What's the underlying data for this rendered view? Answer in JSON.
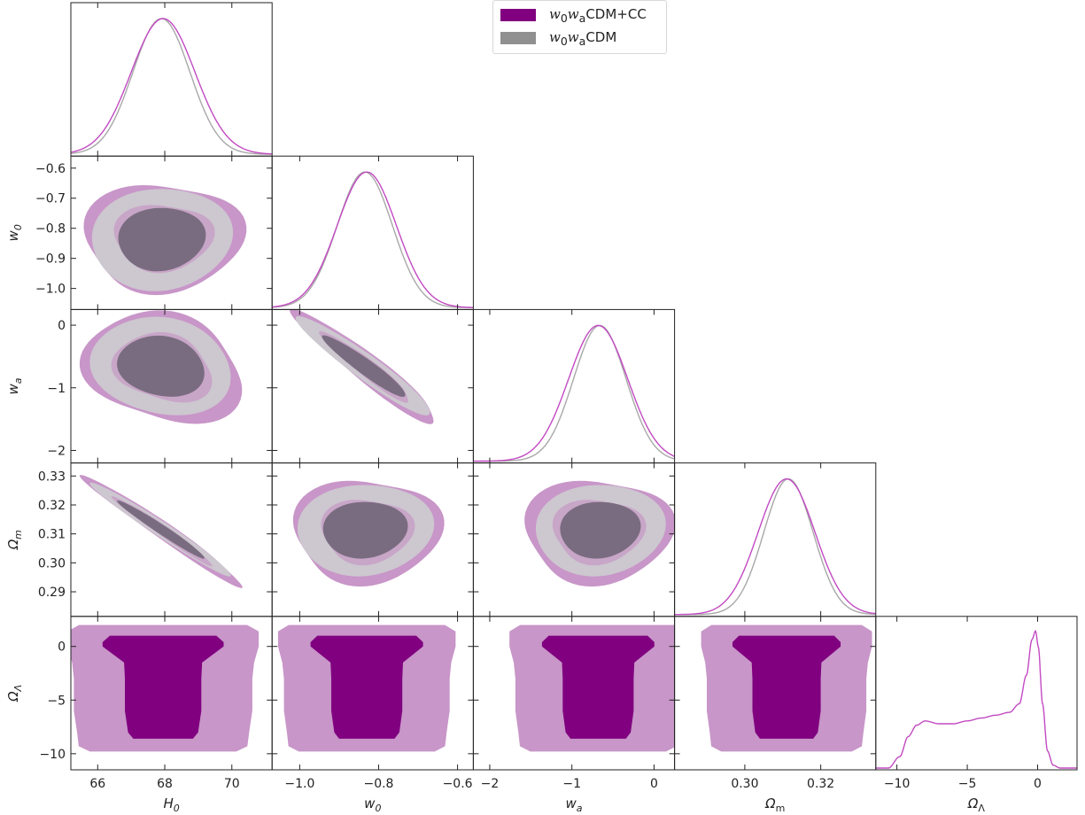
{
  "legend": {
    "items": [
      {
        "label_a": "w",
        "sub_a": "0",
        "label_b": "w",
        "sub_b": "a",
        "label_c": "CDM+CC",
        "color": "#800080"
      },
      {
        "label_a": "w",
        "sub_a": "0",
        "label_b": "w",
        "sub_b": "a",
        "label_c": "CDM",
        "color": "#909090"
      }
    ],
    "placement": "top-center"
  },
  "chart_data": {
    "type": "triangle-corner-plot",
    "parameters": [
      {
        "key": "H0",
        "label": "H",
        "sub": "0",
        "range": [
          65.2,
          71.2
        ],
        "ticks": [
          66,
          68,
          70
        ],
        "tick_labels": [
          "66",
          "68",
          "70"
        ]
      },
      {
        "key": "w0",
        "label": "w",
        "sub": "0",
        "range": [
          -1.07,
          -0.56
        ],
        "ticks": [
          -1.0,
          -0.8,
          -0.6
        ],
        "tick_labels": [
          "−1.0",
          "−0.8",
          "−0.6"
        ],
        "yticks": [
          -0.6,
          -0.7,
          -0.8,
          -0.9,
          -1.0
        ],
        "ytick_labels": [
          "−0.6",
          "−0.7",
          "−0.8",
          "−0.9",
          "−1.0"
        ]
      },
      {
        "key": "wa",
        "label": "w",
        "sub": "a",
        "range": [
          -2.2,
          0.25
        ],
        "ticks": [
          -2,
          -1,
          0
        ],
        "tick_labels": [
          "−2",
          "−1",
          "0"
        ],
        "yticks": [
          0,
          -1,
          -2
        ],
        "ytick_labels": [
          "0",
          "−1",
          "−2"
        ]
      },
      {
        "key": "Om",
        "label": "Ω",
        "sub": "m",
        "range": [
          0.2815,
          0.3345
        ],
        "ticks": [
          0.3,
          0.32
        ],
        "tick_labels": [
          "0.30",
          "0.32"
        ],
        "yticks": [
          0.33,
          0.32,
          0.31,
          0.3,
          0.29
        ],
        "ytick_labels": [
          "0.33",
          "0.32",
          "0.31",
          "0.30",
          "0.29"
        ]
      },
      {
        "key": "OL",
        "label": "Ω",
        "sub": "Λ",
        "range": [
          -11.5,
          2.8
        ],
        "ticks": [
          -10,
          -5,
          0
        ],
        "tick_labels": [
          "−10",
          "−5",
          "0"
        ],
        "yticks": [
          0,
          -5,
          -10
        ],
        "ytick_labels": [
          "0",
          "−5",
          "−10"
        ]
      }
    ],
    "series": [
      {
        "name": "w0waCDM+CC",
        "color": "#800080",
        "contour_outer": "#c896c8",
        "contour_inner": "#800080",
        "marginals": {
          "H0": {
            "mean": 67.95,
            "sigma": 0.95
          },
          "w0": {
            "mean": -0.83,
            "sigma": 0.075
          },
          "wa": {
            "mean": -0.68,
            "sigma": 0.36
          },
          "Om": {
            "mean": 0.311,
            "sigma": 0.0075
          },
          "OL_curve": [
            [
              -11.5,
              0.0
            ],
            [
              -10.6,
              0.0
            ],
            [
              -9.8,
              0.08
            ],
            [
              -9.2,
              0.22
            ],
            [
              -8.6,
              0.3
            ],
            [
              -8.0,
              0.33
            ],
            [
              -7.0,
              0.31
            ],
            [
              -6.0,
              0.31
            ],
            [
              -5.0,
              0.33
            ],
            [
              -4.0,
              0.35
            ],
            [
              -3.0,
              0.37
            ],
            [
              -2.0,
              0.39
            ],
            [
              -1.3,
              0.45
            ],
            [
              -0.8,
              0.65
            ],
            [
              -0.4,
              0.9
            ],
            [
              -0.15,
              0.96
            ],
            [
              0.05,
              0.85
            ],
            [
              0.35,
              0.45
            ],
            [
              0.7,
              0.12
            ],
            [
              1.1,
              0.02
            ],
            [
              1.6,
              0.0
            ],
            [
              2.8,
              0.0
            ]
          ]
        },
        "pairs": {
          "w0_H0": {
            "rho": 0.1
          },
          "wa_H0": {
            "rho": -0.1
          },
          "Om_H0": {
            "rho": -0.98
          },
          "wa_w0": {
            "rho": -0.95
          },
          "Om_w0": {
            "rho": 0.1
          },
          "Om_wa": {
            "rho": 0.1
          }
        }
      },
      {
        "name": "w0waCDM",
        "color": "#909090",
        "contour_outer": "#cdc7d0",
        "contour_inner": "#7a6c80",
        "marginals": {
          "H0": {
            "mean": 67.9,
            "sigma": 0.85
          },
          "w0": {
            "mean": -0.835,
            "sigma": 0.07
          },
          "wa": {
            "mean": -0.66,
            "sigma": 0.32
          },
          "Om": {
            "mean": 0.3115,
            "sigma": 0.0065
          }
        },
        "pairs": {
          "w0_H0": {
            "rho": 0.1
          },
          "wa_H0": {
            "rho": -0.1
          },
          "Om_H0": {
            "rho": -0.98
          },
          "wa_w0": {
            "rho": -0.95
          },
          "Om_w0": {
            "rho": 0.1
          },
          "Om_wa": {
            "rho": 0.1
          }
        }
      }
    ],
    "grid": false
  }
}
